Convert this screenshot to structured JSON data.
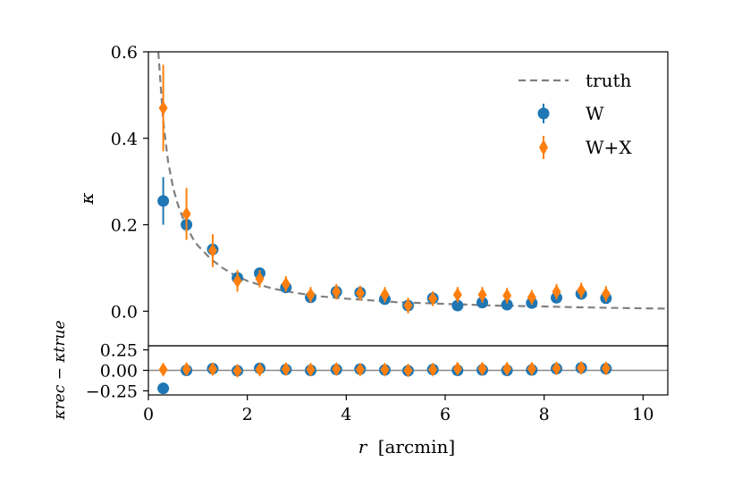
{
  "chart_data": {
    "type": "scatter",
    "colors": {
      "W": "#1f77b4",
      "WX": "#ff7f0e",
      "truth": "#808080",
      "zero_line": "#888888"
    },
    "top_panel": {
      "ylabel": "κ",
      "ylim": [
        -0.08,
        0.6
      ],
      "yticks": [
        0.0,
        0.2,
        0.4,
        0.6
      ],
      "ytick_labels": [
        "0.0",
        "0.2",
        "0.4",
        "0.6"
      ],
      "truth_curve": {
        "name": "truth",
        "x": [
          0.2,
          0.25,
          0.3,
          0.35,
          0.4,
          0.5,
          0.6,
          0.75,
          0.9,
          1.0,
          1.25,
          1.5,
          1.75,
          2.0,
          2.25,
          2.5,
          2.75,
          3.0,
          3.5,
          4.0,
          4.5,
          5.0,
          5.5,
          6.0,
          6.5,
          7.0,
          7.5,
          8.0,
          8.5,
          9.0,
          9.5,
          10.0,
          10.5
        ],
        "y": [
          0.6,
          0.52,
          0.44,
          0.39,
          0.345,
          0.285,
          0.245,
          0.2,
          0.168,
          0.152,
          0.122,
          0.1,
          0.083,
          0.07,
          0.061,
          0.053,
          0.047,
          0.042,
          0.034,
          0.029,
          0.025,
          0.021,
          0.019,
          0.017,
          0.015,
          0.013,
          0.012,
          0.011,
          0.0095,
          0.0085,
          0.0075,
          0.0065,
          0.006
        ]
      },
      "series": [
        {
          "name": "W",
          "marker": "circle",
          "x": [
            0.3,
            0.77,
            1.3,
            1.8,
            2.25,
            2.78,
            3.28,
            3.8,
            4.28,
            4.78,
            5.25,
            5.75,
            6.25,
            6.75,
            7.25,
            7.75,
            8.25,
            8.75,
            9.25
          ],
          "y": [
            0.255,
            0.2,
            0.143,
            0.077,
            0.088,
            0.055,
            0.032,
            0.045,
            0.043,
            0.028,
            0.013,
            0.03,
            0.013,
            0.02,
            0.015,
            0.019,
            0.031,
            0.04,
            0.03
          ],
          "yerr": [
            0.055,
            0.012,
            0.008,
            0.007,
            0.012,
            0.008,
            0.007,
            0.006,
            0.006,
            0.006,
            0.006,
            0.006,
            0.006,
            0.005,
            0.005,
            0.005,
            0.006,
            0.006,
            0.006
          ]
        },
        {
          "name": "W+X",
          "marker": "diamond",
          "x": [
            0.3,
            0.77,
            1.3,
            1.8,
            2.25,
            2.78,
            3.28,
            3.8,
            4.28,
            4.78,
            5.25,
            5.75,
            6.25,
            6.75,
            7.25,
            7.75,
            8.25,
            8.75,
            9.25
          ],
          "y": [
            0.47,
            0.225,
            0.14,
            0.07,
            0.075,
            0.063,
            0.038,
            0.045,
            0.042,
            0.038,
            0.013,
            0.029,
            0.038,
            0.038,
            0.036,
            0.032,
            0.045,
            0.048,
            0.04
          ],
          "yerr": [
            0.1,
            0.06,
            0.038,
            0.025,
            0.02,
            0.018,
            0.018,
            0.018,
            0.017,
            0.018,
            0.018,
            0.017,
            0.018,
            0.018,
            0.018,
            0.017,
            0.018,
            0.018,
            0.018
          ]
        }
      ],
      "legend": {
        "position": "top-right",
        "entries": [
          "truth",
          "W",
          "W+X"
        ]
      }
    },
    "bottom_panel": {
      "ylabel": "κrec − κtrue",
      "ylim": [
        -0.3,
        0.3
      ],
      "yticks": [
        0.25,
        0.0,
        -0.25
      ],
      "ytick_labels": [
        "0.25",
        "0.00",
        "−0.25"
      ],
      "zero_line": 0.0,
      "series": [
        {
          "name": "W",
          "x": [
            0.3,
            0.77,
            1.3,
            1.8,
            2.25,
            2.78,
            3.28,
            3.8,
            4.28,
            4.78,
            5.25,
            5.75,
            6.25,
            6.75,
            7.25,
            7.75,
            8.25,
            8.75,
            9.25
          ],
          "y": [
            -0.22,
            0.0,
            0.02,
            -0.005,
            0.025,
            0.01,
            0.0,
            0.01,
            0.015,
            0.005,
            -0.005,
            0.01,
            0.0,
            0.005,
            0.0,
            0.005,
            0.02,
            0.03,
            0.02
          ],
          "yerr": [
            0.015,
            0.015,
            0.015,
            0.015,
            0.015,
            0.015,
            0.015,
            0.015,
            0.015,
            0.015,
            0.015,
            0.015,
            0.015,
            0.015,
            0.015,
            0.015,
            0.015,
            0.015,
            0.015
          ]
        },
        {
          "name": "W+X",
          "x": [
            0.3,
            0.77,
            1.3,
            1.8,
            2.25,
            2.78,
            3.28,
            3.8,
            4.28,
            4.78,
            5.25,
            5.75,
            6.25,
            6.75,
            7.25,
            7.75,
            8.25,
            8.75,
            9.25
          ],
          "y": [
            0.01,
            0.015,
            0.015,
            -0.005,
            0.01,
            0.015,
            0.01,
            0.015,
            0.01,
            0.01,
            0.0,
            0.01,
            0.02,
            0.02,
            0.02,
            0.02,
            0.025,
            0.03,
            0.025
          ],
          "yerr": [
            0.06,
            0.04,
            0.04,
            0.04,
            0.04,
            0.04,
            0.04,
            0.04,
            0.04,
            0.04,
            0.04,
            0.04,
            0.04,
            0.04,
            0.04,
            0.04,
            0.04,
            0.04,
            0.04
          ]
        }
      ]
    },
    "xaxis": {
      "xlabel_var": "r",
      "xlabel_unit": "[arcmin]",
      "xlim": [
        0,
        10.5
      ],
      "xticks": [
        0,
        2,
        4,
        6,
        8,
        10
      ],
      "xtick_labels": [
        "0",
        "2",
        "4",
        "6",
        "8",
        "10"
      ]
    }
  }
}
